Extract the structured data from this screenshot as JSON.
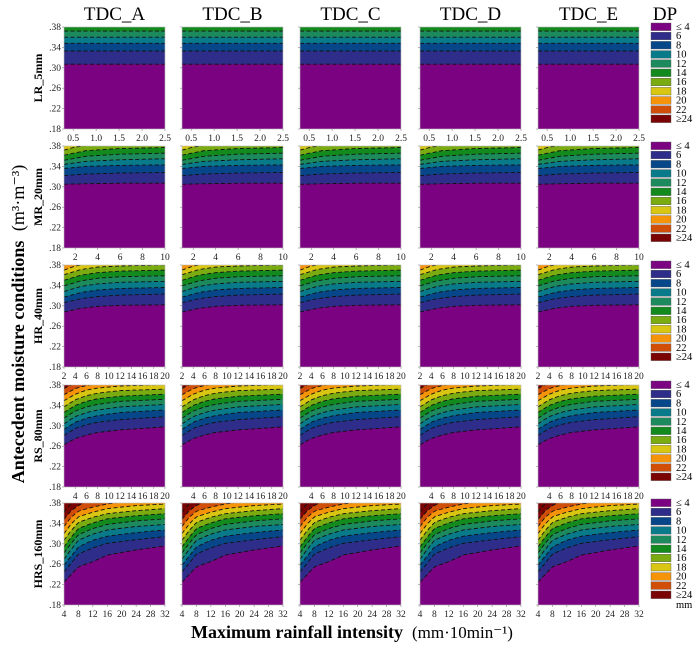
{
  "chart_data": {
    "type": "heatmap",
    "subtype": "filled-contour-grid",
    "columns": [
      "TDC_A",
      "TDC_B",
      "TDC_C",
      "TDC_D",
      "TDC_E"
    ],
    "rows": [
      {
        "label": "LR_5mm",
        "xlim": [
          0.3,
          2.5
        ],
        "xticks": [
          "0.5",
          "1.0",
          "1.5",
          "2.0",
          "2.5"
        ],
        "xtick_values": [
          0.5,
          1.0,
          1.5,
          2.0,
          2.5
        ],
        "contours": [
          {
            "dp": 4,
            "x": [
              0.3,
              2.5
            ],
            "y": [
              0.307,
              0.307
            ]
          },
          {
            "dp": 6,
            "x": [
              0.3,
              2.5
            ],
            "y": [
              0.333,
              0.333
            ]
          },
          {
            "dp": 8,
            "x": [
              0.3,
              2.5
            ],
            "y": [
              0.348,
              0.348
            ]
          },
          {
            "dp": 10,
            "x": [
              0.3,
              2.5
            ],
            "y": [
              0.36,
              0.36
            ]
          },
          {
            "dp": 12,
            "x": [
              0.3,
              2.5
            ],
            "y": [
              0.372,
              0.372
            ]
          }
        ]
      },
      {
        "label": "MR_20mm",
        "xlim": [
          1,
          10
        ],
        "xticks": [
          "2",
          "4",
          "6",
          "8",
          "10"
        ],
        "xtick_values": [
          2,
          4,
          6,
          8,
          10
        ],
        "contours": [
          {
            "dp": 4,
            "x": [
              1,
              3,
              6,
              10
            ],
            "y": [
              0.305,
              0.306,
              0.307,
              0.307
            ]
          },
          {
            "dp": 6,
            "x": [
              1,
              3,
              6,
              10
            ],
            "y": [
              0.322,
              0.325,
              0.327,
              0.328
            ]
          },
          {
            "dp": 8,
            "x": [
              1,
              3,
              6,
              10
            ],
            "y": [
              0.336,
              0.34,
              0.342,
              0.343
            ]
          },
          {
            "dp": 10,
            "x": [
              1,
              3,
              6,
              10
            ],
            "y": [
              0.344,
              0.35,
              0.353,
              0.355
            ]
          },
          {
            "dp": 12,
            "x": [
              1,
              3,
              6,
              10
            ],
            "y": [
              0.352,
              0.36,
              0.364,
              0.366
            ]
          },
          {
            "dp": 14,
            "x": [
              1,
              3,
              6,
              10
            ],
            "y": [
              0.362,
              0.371,
              0.375,
              0.377
            ]
          },
          {
            "dp": 16,
            "x": [
              1,
              2,
              3
            ],
            "y": [
              0.372,
              0.378,
              0.381
            ]
          }
        ]
      },
      {
        "label": "HR_40mm",
        "xlim": [
          2,
          20
        ],
        "xticks": [
          "2",
          "4",
          "6",
          "8",
          "10",
          "12",
          "14",
          "16",
          "18",
          "20"
        ],
        "xtick_values": [
          2,
          4,
          6,
          8,
          10,
          12,
          14,
          16,
          18,
          20
        ],
        "contours": [
          {
            "dp": 4,
            "x": [
              2,
              5,
              8,
              12,
              20
            ],
            "y": [
              0.288,
              0.295,
              0.299,
              0.301,
              0.302
            ]
          },
          {
            "dp": 6,
            "x": [
              2,
              5,
              8,
              12,
              20
            ],
            "y": [
              0.306,
              0.314,
              0.318,
              0.321,
              0.323
            ]
          },
          {
            "dp": 8,
            "x": [
              2,
              5,
              8,
              12,
              20
            ],
            "y": [
              0.317,
              0.326,
              0.331,
              0.334,
              0.336
            ]
          },
          {
            "dp": 10,
            "x": [
              2,
              5,
              8,
              12,
              20
            ],
            "y": [
              0.328,
              0.338,
              0.343,
              0.346,
              0.348
            ]
          },
          {
            "dp": 12,
            "x": [
              2,
              5,
              8,
              12,
              20
            ],
            "y": [
              0.339,
              0.349,
              0.354,
              0.357,
              0.359
            ]
          },
          {
            "dp": 14,
            "x": [
              2,
              5,
              8,
              12,
              20
            ],
            "y": [
              0.35,
              0.36,
              0.365,
              0.368,
              0.37
            ]
          },
          {
            "dp": 16,
            "x": [
              2,
              5,
              8,
              12,
              20
            ],
            "y": [
              0.361,
              0.371,
              0.376,
              0.378,
              0.38
            ]
          },
          {
            "dp": 18,
            "x": [
              2,
              4,
              6
            ],
            "y": [
              0.37,
              0.378,
              0.382
            ]
          }
        ]
      },
      {
        "label": "RS_80mm",
        "xlim": [
          2,
          20
        ],
        "xticks": [
          "4",
          "6",
          "8",
          "10",
          "12",
          "14",
          "16",
          "18",
          "20"
        ],
        "xtick_values": [
          4,
          6,
          8,
          10,
          12,
          14,
          16,
          18,
          20
        ],
        "contours": [
          {
            "dp": 4,
            "x": [
              2,
              4,
              6,
              8,
              12,
              20
            ],
            "y": [
              0.263,
              0.275,
              0.282,
              0.287,
              0.292,
              0.298
            ]
          },
          {
            "dp": 6,
            "x": [
              2,
              4,
              6,
              8,
              12,
              20
            ],
            "y": [
              0.281,
              0.295,
              0.302,
              0.307,
              0.312,
              0.318
            ]
          },
          {
            "dp": 8,
            "x": [
              2,
              4,
              6,
              8,
              12,
              20
            ],
            "y": [
              0.293,
              0.307,
              0.315,
              0.32,
              0.326,
              0.331
            ]
          },
          {
            "dp": 10,
            "x": [
              2,
              4,
              6,
              8,
              12,
              20
            ],
            "y": [
              0.304,
              0.318,
              0.326,
              0.331,
              0.337,
              0.342
            ]
          },
          {
            "dp": 12,
            "x": [
              2,
              4,
              6,
              8,
              12,
              20
            ],
            "y": [
              0.315,
              0.329,
              0.337,
              0.342,
              0.348,
              0.352
            ]
          },
          {
            "dp": 14,
            "x": [
              2,
              4,
              6,
              8,
              12,
              20
            ],
            "y": [
              0.326,
              0.34,
              0.348,
              0.353,
              0.358,
              0.362
            ]
          },
          {
            "dp": 16,
            "x": [
              2,
              4,
              6,
              8,
              12,
              20
            ],
            "y": [
              0.337,
              0.351,
              0.359,
              0.364,
              0.369,
              0.372
            ]
          },
          {
            "dp": 18,
            "x": [
              2,
              4,
              6,
              8,
              12,
              20
            ],
            "y": [
              0.349,
              0.362,
              0.37,
              0.374,
              0.378,
              0.381
            ]
          },
          {
            "dp": 20,
            "x": [
              2,
              4,
              6,
              8
            ],
            "y": [
              0.361,
              0.373,
              0.379,
              0.383
            ]
          },
          {
            "dp": 22,
            "x": [
              2,
              3,
              4
            ],
            "y": [
              0.373,
              0.379,
              0.383
            ]
          }
        ]
      },
      {
        "label": "HRS_160mm",
        "xlim": [
          4,
          32
        ],
        "xticks": [
          "4",
          "8",
          "12",
          "16",
          "20",
          "24",
          "28",
          "32"
        ],
        "xtick_values": [
          4,
          8,
          12,
          16,
          20,
          24,
          28,
          32
        ],
        "contours": [
          {
            "dp": 4,
            "x": [
              4,
              6,
              8,
              12,
              16,
              24,
              32
            ],
            "y": [
              0.225,
              0.24,
              0.255,
              0.265,
              0.278,
              0.288,
              0.296
            ]
          },
          {
            "dp": 6,
            "x": [
              4,
              6,
              8,
              12,
              16,
              24,
              32
            ],
            "y": [
              0.245,
              0.262,
              0.28,
              0.292,
              0.301,
              0.308,
              0.314
            ]
          },
          {
            "dp": 8,
            "x": [
              4,
              6,
              8,
              12,
              16,
              24,
              32
            ],
            "y": [
              0.258,
              0.276,
              0.294,
              0.307,
              0.315,
              0.322,
              0.327
            ]
          },
          {
            "dp": 10,
            "x": [
              4,
              6,
              8,
              12,
              16,
              24,
              32
            ],
            "y": [
              0.27,
              0.289,
              0.307,
              0.319,
              0.327,
              0.334,
              0.338
            ]
          },
          {
            "dp": 12,
            "x": [
              4,
              6,
              8,
              12,
              16,
              24,
              32
            ],
            "y": [
              0.282,
              0.301,
              0.318,
              0.33,
              0.338,
              0.345,
              0.349
            ]
          },
          {
            "dp": 14,
            "x": [
              4,
              6,
              8,
              12,
              16,
              24,
              32
            ],
            "y": [
              0.294,
              0.313,
              0.33,
              0.341,
              0.349,
              0.355,
              0.359
            ]
          },
          {
            "dp": 16,
            "x": [
              4,
              6,
              8,
              12,
              16,
              24,
              32
            ],
            "y": [
              0.307,
              0.326,
              0.342,
              0.352,
              0.359,
              0.365,
              0.369
            ]
          },
          {
            "dp": 18,
            "x": [
              4,
              6,
              8,
              12,
              16,
              24,
              32
            ],
            "y": [
              0.32,
              0.339,
              0.353,
              0.362,
              0.369,
              0.375,
              0.378
            ]
          },
          {
            "dp": 20,
            "x": [
              4,
              6,
              8,
              12,
              16,
              20
            ],
            "y": [
              0.334,
              0.352,
              0.364,
              0.372,
              0.378,
              0.382
            ]
          },
          {
            "dp": 22,
            "x": [
              4,
              6,
              8,
              10
            ],
            "y": [
              0.348,
              0.365,
              0.375,
              0.382
            ]
          },
          {
            "dp": 24,
            "x": [
              4,
              5,
              6,
              7
            ],
            "y": [
              0.362,
              0.372,
              0.378,
              0.383
            ]
          }
        ]
      }
    ],
    "ylim": [
      0.18,
      0.38
    ],
    "yticks": [
      ".18",
      ".22",
      ".26",
      ".30",
      ".34",
      ".38"
    ],
    "ytick_values": [
      0.18,
      0.22,
      0.26,
      0.3,
      0.34,
      0.38
    ],
    "ylabel": "Antecedent moisture conditions",
    "ylabel_unit": "(m³·m⁻³)",
    "xlabel": "Maximum rainfall intensity",
    "xlabel_unit": "(mm·10min⁻¹)",
    "legend": {
      "title": "DP",
      "placement": "right",
      "unit": "mm",
      "levels": [
        {
          "label": "≤ 4",
          "color": "#7b0280"
        },
        {
          "label": "6",
          "color": "#2e2e8a"
        },
        {
          "label": "8",
          "color": "#08468a"
        },
        {
          "label": "10",
          "color": "#087a8a"
        },
        {
          "label": "12",
          "color": "#1c8a5c"
        },
        {
          "label": "14",
          "color": "#128a1e"
        },
        {
          "label": "16",
          "color": "#7aac12"
        },
        {
          "label": "18",
          "color": "#d8c612"
        },
        {
          "label": "20",
          "color": "#f59408"
        },
        {
          "label": "22",
          "color": "#d14e08"
        },
        {
          "label": "≥24",
          "color": "#7a0404"
        }
      ]
    },
    "contour_style": "dashed-black"
  }
}
